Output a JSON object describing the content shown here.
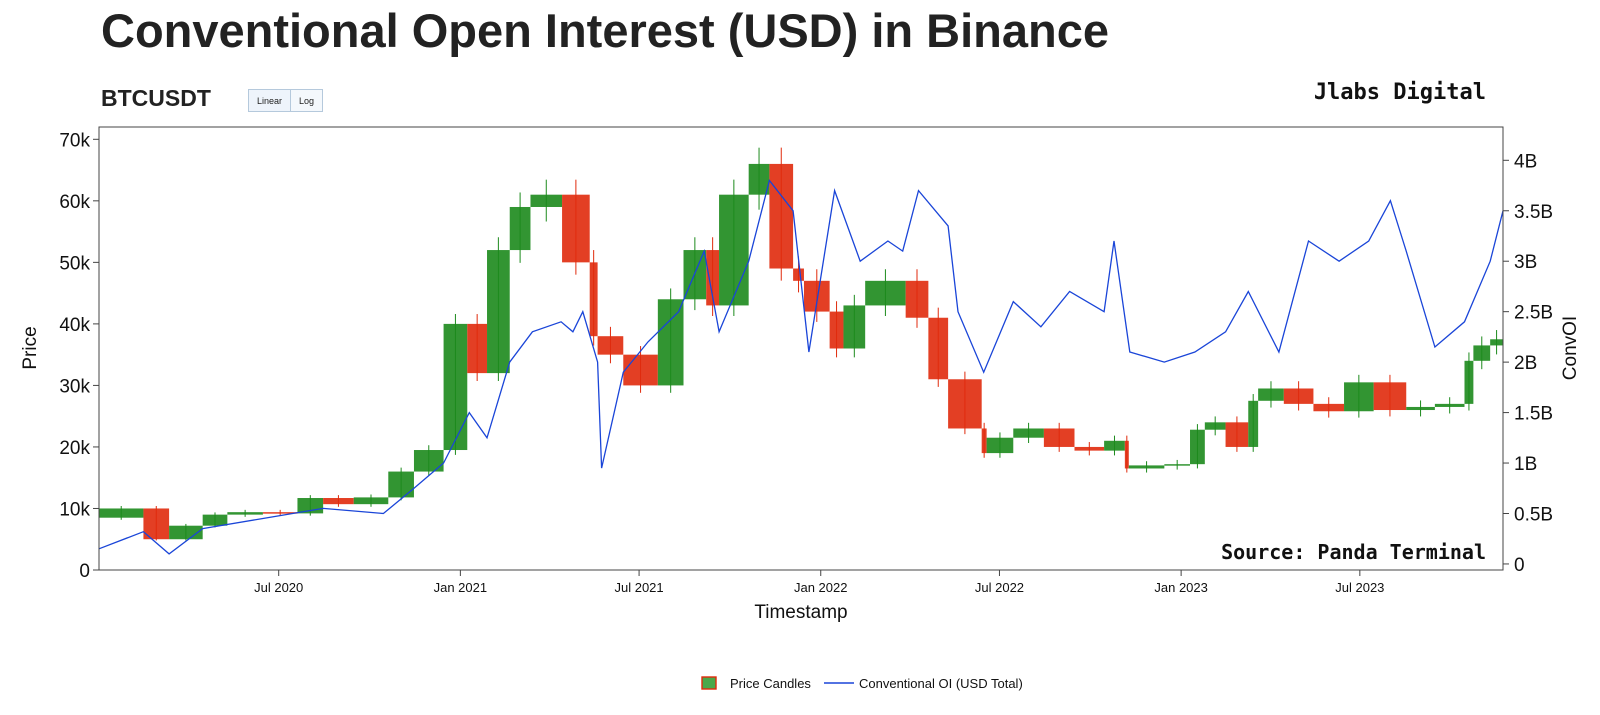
{
  "title": "Conventional Open Interest (USD) in Binance",
  "symbol": "BTCUSDT",
  "scale_buttons": {
    "linear": "Linear",
    "log": "Log",
    "active": "linear"
  },
  "brand": "Jlabs Digital",
  "source": "Source: Panda Terminal",
  "colors": {
    "oi_line": "#1a45d8",
    "candle_up": "#1c8a1c",
    "candle_down": "#e02a0c",
    "axis": "#444444"
  },
  "chart_data": {
    "type": "line",
    "title": "Conventional Open Interest (USD) in Binance",
    "xlabel": "Timestamp",
    "ylabel": "Price",
    "y2label": "ConvOI",
    "xlim": [
      "2020-01-01",
      "2023-11-23"
    ],
    "ylim": [
      0,
      72000
    ],
    "y2lim": [
      -0.06,
      4.33
    ],
    "x_ticks": [
      "Jul 2020",
      "Jan 2021",
      "Jul 2021",
      "Jan 2022",
      "Jul 2022",
      "Jan 2023",
      "Jul 2023"
    ],
    "y_ticks": [
      "0",
      "10k",
      "20k",
      "30k",
      "40k",
      "50k",
      "60k",
      "70k"
    ],
    "y2_ticks": [
      "0",
      "0.5B",
      "1B",
      "1.5B",
      "2B",
      "2.5B",
      "3B",
      "3.5B",
      "4B"
    ],
    "grid": false,
    "legend": "bottom-center",
    "series": [
      {
        "name": "Price Candles",
        "kind": "candlestick",
        "axis": "left",
        "x": [
          "2020-01-01",
          "2020-02-15",
          "2020-03-12",
          "2020-04-15",
          "2020-05-10",
          "2020-06-15",
          "2020-07-20",
          "2020-08-15",
          "2020-09-15",
          "2020-10-20",
          "2020-11-15",
          "2020-12-15",
          "2021-01-08",
          "2021-01-28",
          "2021-02-20",
          "2021-03-13",
          "2021-04-14",
          "2021-05-12",
          "2021-05-20",
          "2021-06-15",
          "2021-07-20",
          "2021-08-15",
          "2021-09-07",
          "2021-09-20",
          "2021-10-20",
          "2021-11-10",
          "2021-12-04",
          "2021-12-15",
          "2022-01-10",
          "2022-01-24",
          "2022-02-15",
          "2022-03-28",
          "2022-04-20",
          "2022-05-10",
          "2022-06-13",
          "2022-06-18",
          "2022-07-15",
          "2022-08-15",
          "2022-09-15",
          "2022-10-15",
          "2022-11-05",
          "2022-11-09",
          "2022-12-15",
          "2023-01-10",
          "2023-01-25",
          "2023-02-15",
          "2023-03-10",
          "2023-03-20",
          "2023-04-15",
          "2023-05-15",
          "2023-06-15",
          "2023-07-15",
          "2023-08-17",
          "2023-09-15",
          "2023-10-15",
          "2023-10-24",
          "2023-11-10",
          "2023-11-23"
        ],
        "close": [
          8500,
          10000,
          5000,
          7200,
          9000,
          9400,
          9200,
          11700,
          10700,
          11800,
          16000,
          19500,
          40000,
          32000,
          52000,
          59000,
          61000,
          50000,
          38000,
          35000,
          30000,
          44000,
          52000,
          43000,
          61000,
          66000,
          49000,
          47000,
          42000,
          36000,
          43000,
          47000,
          41000,
          31000,
          23000,
          19000,
          21500,
          23000,
          20000,
          19400,
          21000,
          16500,
          17000,
          17200,
          22800,
          24000,
          20000,
          27500,
          29500,
          27000,
          25800,
          30500,
          26000,
          26500,
          27000,
          34000,
          36500,
          37500
        ]
      },
      {
        "name": "Conventional OI (USD Total)",
        "kind": "line",
        "axis": "right",
        "unit": "B",
        "x": [
          "2020-01-01",
          "2020-02-15",
          "2020-03-12",
          "2020-04-15",
          "2020-06-15",
          "2020-08-15",
          "2020-10-15",
          "2020-11-15",
          "2020-12-15",
          "2021-01-10",
          "2021-01-28",
          "2021-02-20",
          "2021-03-15",
          "2021-04-13",
          "2021-04-25",
          "2021-05-05",
          "2021-05-20",
          "2021-05-24",
          "2021-06-15",
          "2021-07-10",
          "2021-08-10",
          "2021-09-05",
          "2021-09-20",
          "2021-10-20",
          "2021-11-10",
          "2021-12-04",
          "2021-12-20",
          "2022-01-15",
          "2022-02-10",
          "2022-03-10",
          "2022-03-25",
          "2022-04-10",
          "2022-05-10",
          "2022-05-20",
          "2022-06-15",
          "2022-07-15",
          "2022-08-12",
          "2022-09-10",
          "2022-10-15",
          "2022-10-25",
          "2022-11-10",
          "2022-12-15",
          "2023-01-15",
          "2023-02-15",
          "2023-03-10",
          "2023-04-10",
          "2023-05-10",
          "2023-06-10",
          "2023-07-10",
          "2023-08-01",
          "2023-08-17",
          "2023-09-15",
          "2023-10-15",
          "2023-11-10",
          "2023-11-23"
        ],
        "values": [
          0.15,
          0.32,
          0.1,
          0.35,
          0.45,
          0.55,
          0.5,
          0.75,
          1.0,
          1.5,
          1.25,
          2.0,
          2.3,
          2.4,
          2.3,
          2.5,
          2.0,
          0.95,
          1.9,
          2.2,
          2.5,
          3.1,
          2.3,
          3.0,
          3.8,
          3.5,
          2.1,
          3.7,
          3.0,
          3.2,
          3.1,
          3.7,
          3.35,
          2.5,
          1.9,
          2.6,
          2.35,
          2.7,
          2.5,
          3.2,
          2.1,
          2.0,
          2.1,
          2.3,
          2.7,
          2.1,
          3.2,
          3.0,
          3.2,
          3.6,
          3.1,
          2.15,
          2.4,
          3.0,
          3.5
        ]
      }
    ]
  }
}
